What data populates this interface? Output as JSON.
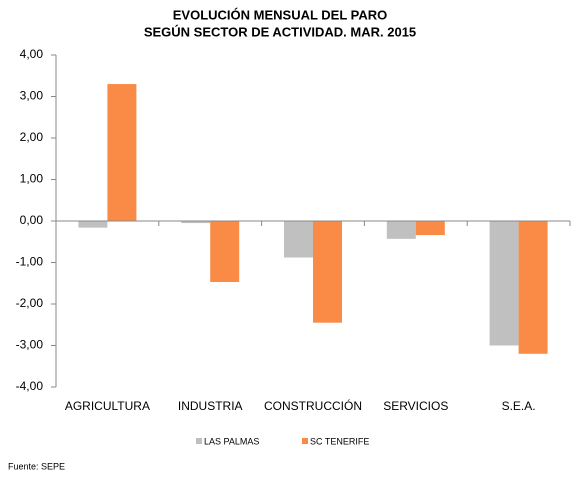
{
  "chart_data": {
    "type": "bar",
    "title": "EVOLUCIÓN MENSUAL DEL PARO",
    "subtitle": "SEGÚN SECTOR DE ACTIVIDAD. MAR. 2015",
    "categories": [
      "AGRICULTURA",
      "INDUSTRIA",
      "CONSTRUCCIÓN",
      "SERVICIOS",
      "S.E.A."
    ],
    "series": [
      {
        "name": "LAS PALMAS",
        "color": "#c0c0c0",
        "values": [
          -0.16,
          -0.05,
          -0.88,
          -0.43,
          -3.0
        ]
      },
      {
        "name": "SC TENERIFE",
        "color": "#f98b46",
        "values": [
          3.3,
          -1.47,
          -2.45,
          -0.34,
          -3.2
        ]
      }
    ],
    "ylim": [
      -4,
      4
    ],
    "yticks": [
      {
        "value": 4,
        "label": "4,00"
      },
      {
        "value": 3,
        "label": "3,00"
      },
      {
        "value": 2,
        "label": "2,00"
      },
      {
        "value": 1,
        "label": "1,00"
      },
      {
        "value": 0,
        "label": "0,00"
      },
      {
        "value": -1,
        "label": "-1,00"
      },
      {
        "value": -2,
        "label": "-2,00"
      },
      {
        "value": -3,
        "label": "-3,00"
      },
      {
        "value": -4,
        "label": "-4,00"
      }
    ],
    "source": "Fuente: SEPE"
  }
}
